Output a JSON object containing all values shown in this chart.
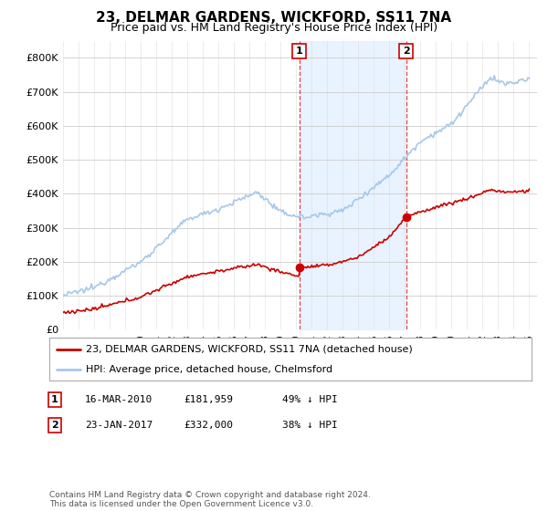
{
  "title": "23, DELMAR GARDENS, WICKFORD, SS11 7NA",
  "subtitle": "Price paid vs. HM Land Registry's House Price Index (HPI)",
  "title_fontsize": 11,
  "subtitle_fontsize": 9,
  "hpi_color": "#a8c8e8",
  "property_color": "#cc0000",
  "dashed_color": "#dd4444",
  "shaded_color": "#ddeeff",
  "legend_label_property": "23, DELMAR GARDENS, WICKFORD, SS11 7NA (detached house)",
  "legend_label_hpi": "HPI: Average price, detached house, Chelmsford",
  "annotation1_label": "1",
  "annotation1_date": "16-MAR-2010",
  "annotation1_price": "£181,959",
  "annotation1_hpi": "49% ↓ HPI",
  "annotation2_label": "2",
  "annotation2_date": "23-JAN-2017",
  "annotation2_price": "£332,000",
  "annotation2_hpi": "38% ↓ HPI",
  "footer": "Contains HM Land Registry data © Crown copyright and database right 2024.\nThis data is licensed under the Open Government Licence v3.0.",
  "ylim": [
    0,
    850000
  ],
  "yticks": [
    0,
    100000,
    200000,
    300000,
    400000,
    500000,
    600000,
    700000,
    800000
  ],
  "ytick_labels": [
    "£0",
    "£100K",
    "£200K",
    "£300K",
    "£400K",
    "£500K",
    "£600K",
    "£700K",
    "£800K"
  ],
  "sale1_x": 2010.2,
  "sale1_y": 181959,
  "sale2_x": 2017.07,
  "sale2_y": 332000,
  "xmin": 1995,
  "xmax": 2025.5
}
